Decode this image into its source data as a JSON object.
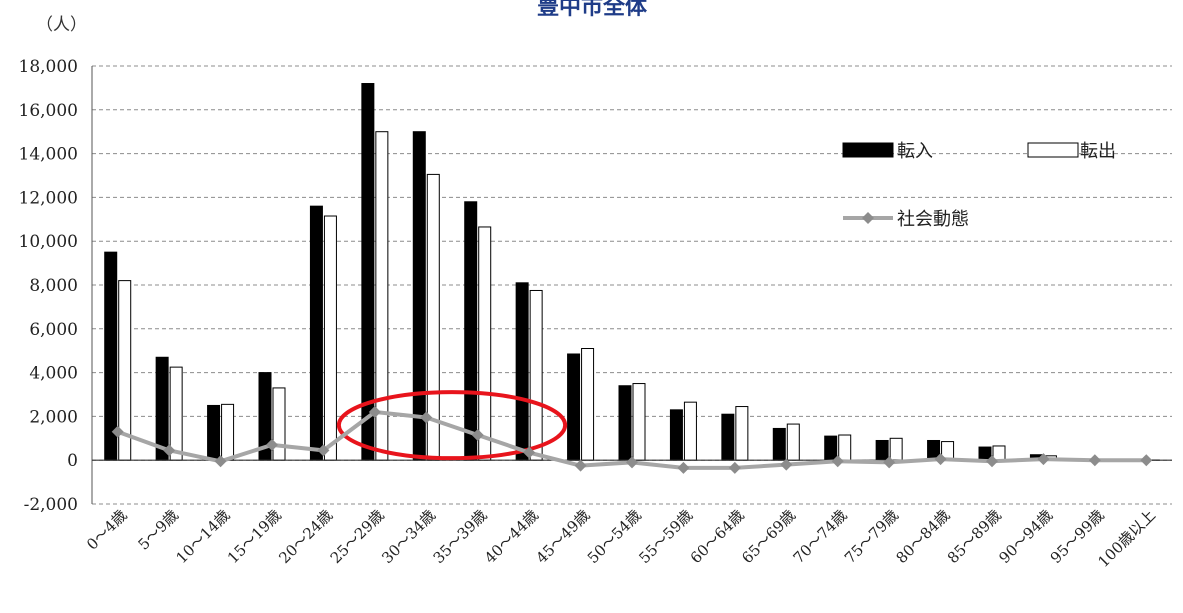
{
  "chart_data": {
    "type": "bar",
    "title": "豊中市全体",
    "unit_label": "（人）",
    "ylim": [
      -2000,
      18000
    ],
    "yticks": [
      -2000,
      0,
      2000,
      4000,
      6000,
      8000,
      10000,
      12000,
      14000,
      16000,
      18000
    ],
    "ytick_labels": [
      "-2,000",
      "0",
      "2,000",
      "4,000",
      "6,000",
      "8,000",
      "10,000",
      "12,000",
      "14,000",
      "16,000",
      "18,000"
    ],
    "grid": true,
    "legend_position": "right",
    "categories": [
      "0～4歳",
      "5～9歳",
      "10～14歳",
      "15～19歳",
      "20～24歳",
      "25～29歳",
      "30～34歳",
      "35～39歳",
      "40～44歳",
      "45～49歳",
      "50～54歳",
      "55～59歳",
      "60～64歳",
      "65～69歳",
      "70～74歳",
      "75～79歳",
      "80～84歳",
      "85～89歳",
      "90～94歳",
      "95～99歳",
      "100歳以上"
    ],
    "series": [
      {
        "name": "転入",
        "type": "bar",
        "color": "#000000",
        "values": [
          9500,
          4700,
          2500,
          4000,
          11600,
          17200,
          15000,
          11800,
          8100,
          4850,
          3400,
          2300,
          2100,
          1450,
          1100,
          900,
          900,
          600,
          250,
          30,
          10
        ]
      },
      {
        "name": "転出",
        "type": "bar",
        "color": "#ffffff",
        "values": [
          8200,
          4250,
          2550,
          3300,
          11150,
          15000,
          13050,
          10650,
          7750,
          5100,
          3500,
          2650,
          2450,
          1650,
          1150,
          1000,
          850,
          650,
          200,
          30,
          10
        ]
      },
      {
        "name": "社会動態",
        "type": "line",
        "color": "#a6a6a6",
        "values": [
          1300,
          450,
          -50,
          700,
          450,
          2200,
          1950,
          1150,
          350,
          -250,
          -100,
          -350,
          -350,
          -200,
          -50,
          -100,
          50,
          -50,
          50,
          0,
          0
        ]
      }
    ],
    "highlight": {
      "shape": "ellipse",
      "color": "#e8141c",
      "categories": [
        "25～29歳",
        "30～34歳",
        "35～39歳",
        "40～44歳"
      ]
    }
  }
}
